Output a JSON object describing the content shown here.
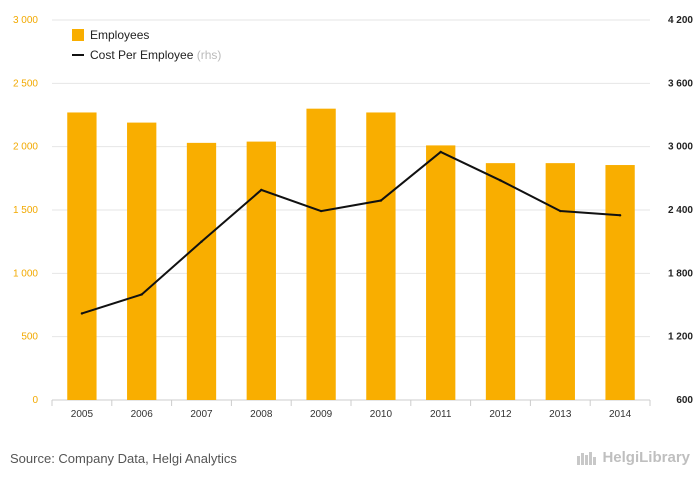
{
  "chart_data": {
    "type": "bar",
    "categories": [
      "2005",
      "2006",
      "2007",
      "2008",
      "2009",
      "2010",
      "2011",
      "2012",
      "2013",
      "2014"
    ],
    "series": [
      {
        "name": "Employees",
        "type": "bar",
        "axis": "left",
        "color": "#f9ae00",
        "values": [
          2270,
          2190,
          2030,
          2040,
          2300,
          2270,
          2010,
          1870,
          1870,
          1855
        ]
      },
      {
        "name": "Cost Per Employee",
        "legend_suffix": "(rhs)",
        "type": "line",
        "axis": "right",
        "color": "#111111",
        "values": [
          1420,
          1600,
          2100,
          2590,
          2390,
          2490,
          2950,
          2680,
          2390,
          2350
        ]
      }
    ],
    "y_left": {
      "ylim": [
        0,
        3000
      ],
      "ticks": [
        "0",
        "500",
        "1 000",
        "1 500",
        "2 000",
        "2 500",
        "3 000"
      ],
      "tick_values": [
        0,
        500,
        1000,
        1500,
        2000,
        2500,
        3000
      ]
    },
    "y_right": {
      "ylim": [
        600,
        4200
      ],
      "ticks": [
        "600",
        "1 200",
        "1 800",
        "2 400",
        "3 000",
        "3 600",
        "4 200"
      ],
      "tick_values": [
        600,
        1200,
        1800,
        2400,
        3000,
        3600,
        4200
      ]
    },
    "grid": true,
    "legend_position": "top-left",
    "title": "",
    "xlabel": "",
    "ylabel": ""
  },
  "footer": {
    "source": "Source: Company Data, Helgi Analytics",
    "brand": "HelgiLibrary"
  }
}
